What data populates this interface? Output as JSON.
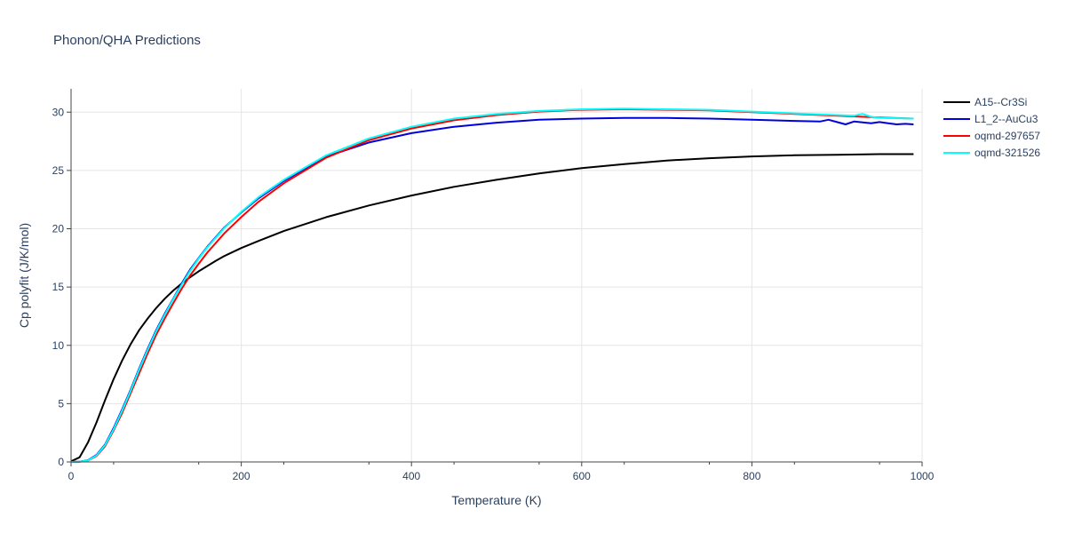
{
  "chart_data": {
    "type": "line",
    "title": "Phonon/QHA Predictions",
    "xlabel": "Temperature (K)",
    "ylabel": "Cp polyfit (J/K/mol)",
    "xlim": [
      0,
      1000
    ],
    "ylim": [
      0,
      32
    ],
    "x_ticks": [
      "0",
      "200",
      "400",
      "600",
      "800",
      "1000"
    ],
    "y_ticks": [
      "0",
      "5",
      "10",
      "15",
      "20",
      "25",
      "30"
    ],
    "grid": true,
    "legend_position": "top-right",
    "series": [
      {
        "name": "A15--Cr3Si",
        "color": "#000000",
        "x": [
          0,
          10,
          20,
          30,
          40,
          50,
          60,
          70,
          80,
          90,
          100,
          110,
          120,
          130,
          140,
          150,
          160,
          170,
          180,
          200,
          220,
          250,
          300,
          350,
          400,
          450,
          500,
          550,
          600,
          650,
          700,
          750,
          800,
          850,
          900,
          950,
          990
        ],
        "y": [
          0.05,
          0.4,
          1.7,
          3.4,
          5.3,
          7.1,
          8.7,
          10.1,
          11.3,
          12.3,
          13.2,
          14.0,
          14.7,
          15.3,
          15.85,
          16.35,
          16.8,
          17.25,
          17.65,
          18.35,
          18.95,
          19.8,
          21.0,
          22.0,
          22.85,
          23.6,
          24.2,
          24.75,
          25.2,
          25.55,
          25.85,
          26.05,
          26.2,
          26.3,
          26.35,
          26.4,
          26.4
        ]
      },
      {
        "name": "L1_2--AuCu3",
        "color": "#0000dd",
        "x": [
          0,
          10,
          20,
          30,
          40,
          50,
          60,
          70,
          80,
          90,
          100,
          110,
          120,
          130,
          140,
          150,
          160,
          180,
          200,
          220,
          250,
          300,
          350,
          400,
          450,
          500,
          550,
          600,
          650,
          700,
          750,
          800,
          850,
          880,
          890,
          900,
          910,
          920,
          940,
          950,
          960,
          970,
          980,
          990
        ],
        "y": [
          0,
          0.02,
          0.15,
          0.6,
          1.5,
          2.9,
          4.5,
          6.2,
          8.0,
          9.7,
          11.3,
          12.7,
          14.0,
          15.3,
          16.5,
          17.5,
          18.45,
          20.1,
          21.4,
          22.6,
          24.1,
          26.2,
          27.4,
          28.2,
          28.75,
          29.1,
          29.35,
          29.45,
          29.5,
          29.5,
          29.45,
          29.35,
          29.25,
          29.2,
          29.35,
          29.15,
          28.95,
          29.2,
          29.05,
          29.15,
          29.05,
          28.95,
          29.0,
          28.95
        ]
      },
      {
        "name": "oqmd-297657",
        "color": "#ff0000",
        "x": [
          0,
          10,
          20,
          30,
          40,
          50,
          60,
          70,
          80,
          90,
          100,
          110,
          120,
          130,
          140,
          150,
          160,
          180,
          200,
          220,
          250,
          300,
          350,
          400,
          450,
          500,
          550,
          600,
          650,
          700,
          750,
          800,
          850,
          900,
          950,
          990
        ],
        "y": [
          0,
          0.02,
          0.12,
          0.5,
          1.35,
          2.7,
          4.2,
          5.9,
          7.6,
          9.3,
          10.9,
          12.3,
          13.6,
          14.85,
          16.0,
          17.0,
          17.95,
          19.6,
          21.0,
          22.3,
          23.9,
          26.1,
          27.6,
          28.6,
          29.3,
          29.75,
          30.05,
          30.2,
          30.25,
          30.2,
          30.15,
          30.0,
          29.85,
          29.7,
          29.55,
          29.45
        ]
      },
      {
        "name": "oqmd-321526",
        "color": "#00ffff",
        "x": [
          0,
          10,
          20,
          30,
          40,
          50,
          60,
          70,
          80,
          90,
          100,
          110,
          120,
          130,
          140,
          150,
          160,
          180,
          200,
          220,
          250,
          300,
          350,
          400,
          450,
          500,
          550,
          600,
          650,
          700,
          750,
          800,
          850,
          900,
          920,
          930,
          940,
          950,
          990
        ],
        "y": [
          0,
          0.02,
          0.14,
          0.55,
          1.45,
          2.8,
          4.4,
          6.1,
          7.9,
          9.6,
          11.2,
          12.6,
          13.95,
          15.2,
          16.4,
          17.45,
          18.4,
          20.05,
          21.45,
          22.7,
          24.2,
          26.3,
          27.75,
          28.75,
          29.45,
          29.85,
          30.1,
          30.25,
          30.3,
          30.25,
          30.2,
          30.05,
          29.9,
          29.75,
          29.7,
          29.85,
          29.6,
          29.5,
          29.45
        ]
      }
    ]
  }
}
